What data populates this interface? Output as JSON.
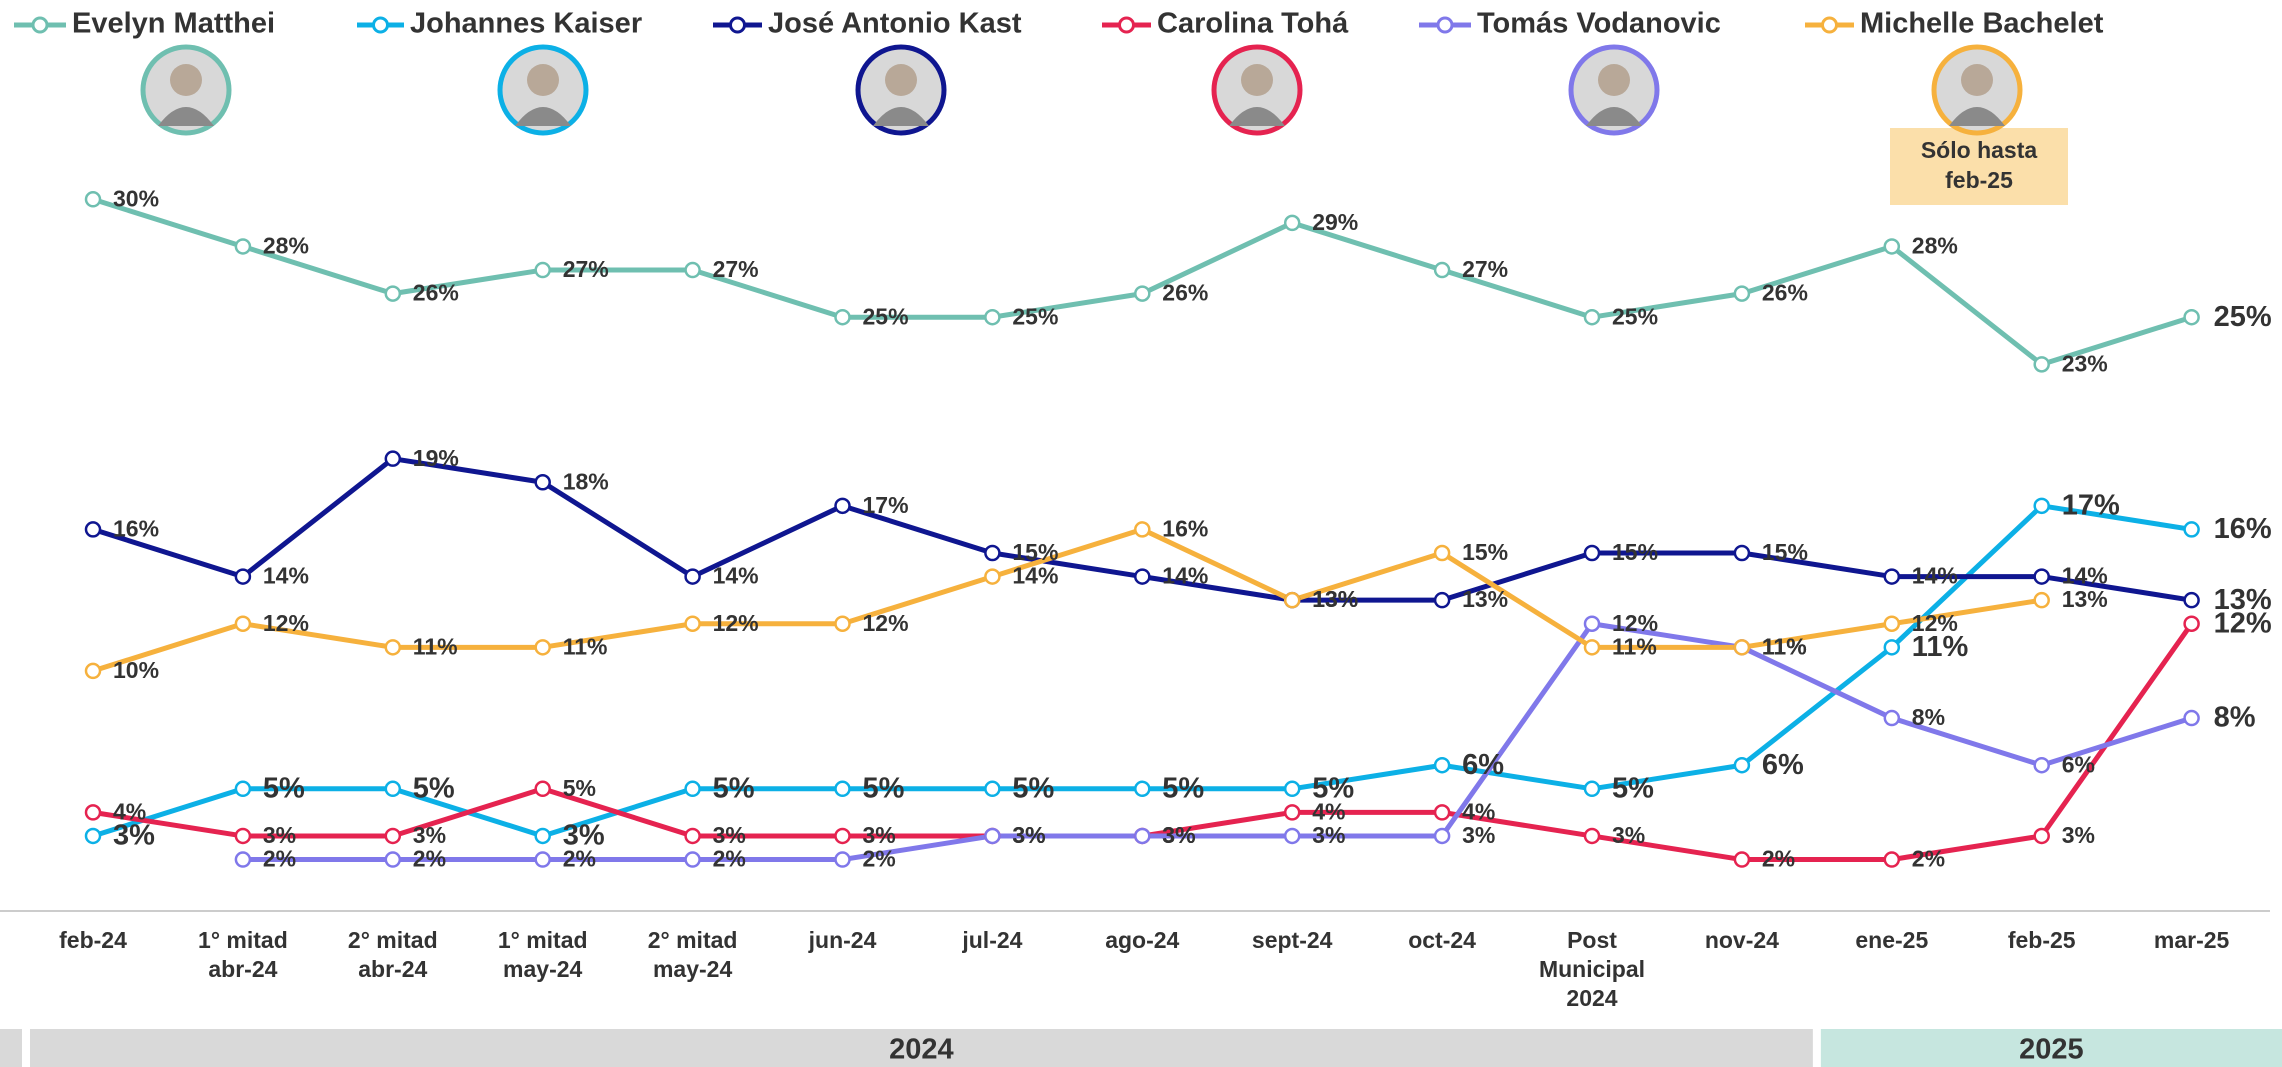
{
  "chart_data": {
    "type": "line",
    "categories": [
      "feb-24",
      "1° mitad abr-24",
      "2° mitad abr-24",
      "1° mitad may-24",
      "2° mitad may-24",
      "jun-24",
      "jul-24",
      "ago-24",
      "sept-24",
      "oct-24",
      "Post Municipal 2024",
      "nov-24",
      "ene-25",
      "feb-25",
      "mar-25"
    ],
    "ylim": [
      0,
      32
    ],
    "series": [
      {
        "name": "Evelyn Matthei",
        "color": "#6fbfb0",
        "values": [
          30,
          28,
          26,
          27,
          27,
          25,
          25,
          26,
          29,
          27,
          25,
          26,
          28,
          23,
          25
        ],
        "value_labels": [
          "30%",
          "28%",
          "26%",
          "27%",
          "27%",
          "25%",
          "25%",
          "26%",
          "29%",
          "27%",
          "25%",
          "26%",
          "28%",
          "23%",
          "25%"
        ]
      },
      {
        "name": "Johannes Kaiser",
        "color": "#0cb0e6",
        "values": [
          3,
          5,
          5,
          3,
          5,
          5,
          5,
          5,
          5,
          6,
          5,
          6,
          11,
          17,
          16
        ],
        "value_labels": [
          "3%",
          "5%",
          "5%",
          "3%",
          "5%",
          "5%",
          "5%",
          "5%",
          "5%",
          "6%",
          "5%",
          "6%",
          "11%",
          "17%",
          "16%"
        ]
      },
      {
        "name": "José Antonio Kast",
        "color": "#0f1690",
        "values": [
          16,
          14,
          19,
          18,
          14,
          17,
          15,
          14,
          13,
          13,
          15,
          15,
          14,
          14,
          13
        ],
        "value_labels": [
          "16%",
          "14%",
          "19%",
          "18%",
          "14%",
          "17%",
          "15%",
          "14%",
          "13%",
          "13%",
          "15%",
          "15%",
          "14%",
          "14%",
          "13%"
        ]
      },
      {
        "name": "Carolina Tohá",
        "color": "#e52350",
        "values": [
          4,
          3,
          3,
          5,
          3,
          3,
          3,
          3,
          4,
          4,
          3,
          2,
          2,
          3,
          12
        ],
        "value_labels": [
          "4%",
          "3%",
          "3%",
          "5%",
          "3%",
          "3%",
          "3%",
          "3%",
          "4%",
          "4%",
          "3%",
          "2%",
          "2%",
          "3%",
          "12%"
        ]
      },
      {
        "name": "Tomás Vodanovic",
        "color": "#8078ea",
        "values": [
          null,
          2,
          2,
          2,
          2,
          2,
          3,
          3,
          3,
          3,
          12,
          11,
          8,
          6,
          8
        ],
        "value_labels": [
          null,
          "2%",
          "2%",
          "2%",
          "2%",
          "2%",
          "3%",
          "3%",
          "3%",
          "3%",
          "12%",
          "11%",
          "8%",
          "6%",
          "8%"
        ]
      },
      {
        "name": "Michelle Bachelet",
        "color": "#f6b13d",
        "values": [
          10,
          12,
          11,
          11,
          12,
          12,
          14,
          16,
          13,
          15,
          11,
          11,
          12,
          13,
          null
        ],
        "value_labels": [
          "10%",
          "12%",
          "11%",
          "11%",
          "12%",
          "12%",
          "14%",
          "16%",
          "13%",
          "15%",
          "11%",
          "11%",
          "12%",
          "13%",
          null
        ]
      }
    ],
    "annotation": "Sólo hasta feb-25",
    "periods": [
      "2024",
      "2025"
    ]
  }
}
